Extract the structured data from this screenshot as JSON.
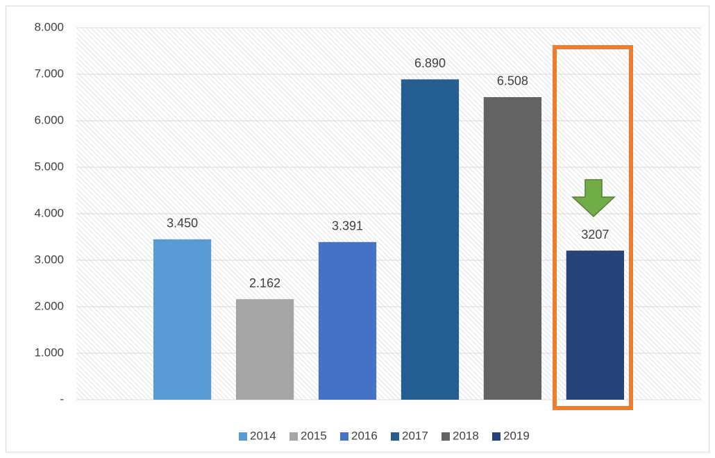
{
  "chart_data": {
    "type": "bar",
    "categories": [
      null
    ],
    "series": [
      {
        "name": "2014",
        "color": "#5b9bd5",
        "values": [
          3450
        ],
        "value_labels": [
          "3.450"
        ]
      },
      {
        "name": "2015",
        "color": "#a5a5a5",
        "values": [
          2162
        ],
        "value_labels": [
          "2.162"
        ]
      },
      {
        "name": "2016",
        "color": "#4472c4",
        "values": [
          3391
        ],
        "value_labels": [
          "3.391"
        ]
      },
      {
        "name": "2017",
        "color": "#255e91",
        "values": [
          6890
        ],
        "value_labels": [
          "6.890"
        ]
      },
      {
        "name": "2018",
        "color": "#636363",
        "values": [
          6508
        ],
        "value_labels": [
          "6.508"
        ]
      },
      {
        "name": "2019",
        "color": "#264478",
        "values": [
          3207
        ],
        "value_labels": [
          "3207"
        ]
      }
    ],
    "ylim": [
      0,
      8000
    ],
    "yticks": [
      {
        "value": 0,
        "label": "-"
      },
      {
        "value": 1000,
        "label": "1.000"
      },
      {
        "value": 2000,
        "label": "2.000"
      },
      {
        "value": 3000,
        "label": "3.000"
      },
      {
        "value": 4000,
        "label": "4.000"
      },
      {
        "value": 5000,
        "label": "5.000"
      },
      {
        "value": 6000,
        "label": "6.000"
      },
      {
        "value": 7000,
        "label": "7.000"
      },
      {
        "value": 8000,
        "label": "8.000"
      }
    ],
    "grid": true,
    "legend": "bottom"
  }
}
